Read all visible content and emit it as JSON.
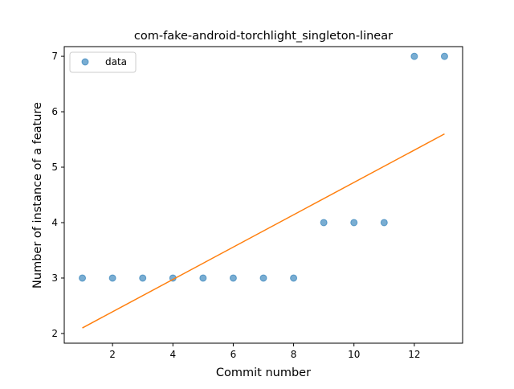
{
  "chart_data": {
    "type": "scatter",
    "title": "com-fake-android-torchlight_singleton-linear",
    "xlabel": "Commit number",
    "ylabel": "Number of instance of a feature",
    "xlim": [
      0.4,
      13.6
    ],
    "ylim": [
      1.825,
      7.175
    ],
    "xticks": [
      2,
      4,
      6,
      8,
      10,
      12
    ],
    "yticks": [
      2,
      3,
      4,
      5,
      6,
      7
    ],
    "grid": false,
    "legend_position": "top-left",
    "series": [
      {
        "name": "data",
        "kind": "scatter",
        "color": "#1f77b4",
        "x": [
          1,
          2,
          3,
          4,
          5,
          6,
          7,
          8,
          9,
          10,
          11,
          12,
          13
        ],
        "y": [
          3,
          3,
          3,
          3,
          3,
          3,
          3,
          3,
          4,
          4,
          4,
          7,
          7
        ]
      },
      {
        "kind": "line",
        "color": "#ff7f0e",
        "x": [
          1,
          13
        ],
        "y": [
          2.1,
          5.6
        ]
      }
    ]
  }
}
